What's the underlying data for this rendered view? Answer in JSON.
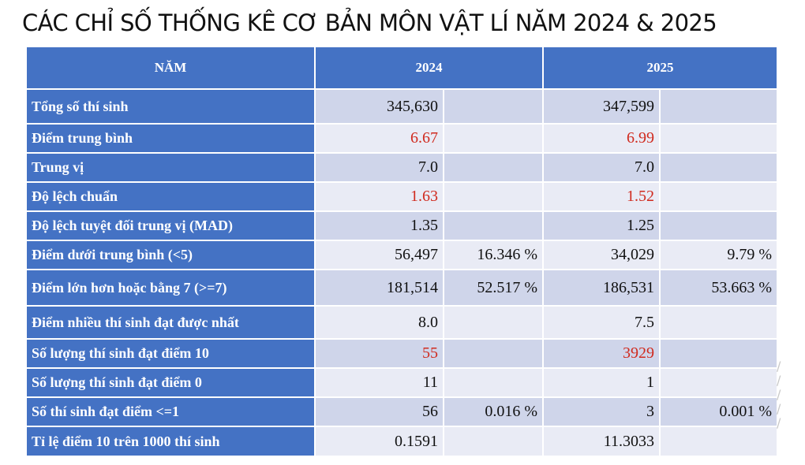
{
  "title": "CÁC CHỈ SỐ THỐNG KÊ CƠ BẢN MÔN VẬT LÍ NĂM 2024 & 2025",
  "table": {
    "headers": [
      "NĂM",
      "2024",
      "2025"
    ],
    "rows": [
      {
        "label": "Tổng số thí sinh",
        "v2024": "345,630",
        "p2024": "",
        "v2025": "347,599",
        "p2025": ""
      },
      {
        "label": "Điểm trung bình",
        "v2024": "6.67",
        "p2024": "",
        "v2025": "6.99",
        "p2025": ""
      },
      {
        "label": "Trung vị",
        "v2024": "7.0",
        "p2024": "",
        "v2025": "7.0",
        "p2025": ""
      },
      {
        "label": "Độ lệch chuẩn",
        "v2024": "1.63",
        "p2024": "",
        "v2025": "1.52",
        "p2025": ""
      },
      {
        "label": "Độ lệch tuyệt đối trung vị (MAD)",
        "v2024": "1.35",
        "p2024": "",
        "v2025": "1.25",
        "p2025": ""
      },
      {
        "label": "Điểm dưới trung bình (<5)",
        "v2024": "56,497",
        "p2024": "16.346 %",
        "v2025": "34,029",
        "p2025": "9.79 %"
      },
      {
        "label": "Điểm lớn hơn hoặc bằng 7 (>=7)",
        "v2024": "181,514",
        "p2024": "52.517 %",
        "v2025": "186,531",
        "p2025": "53.663 %"
      },
      {
        "label": "Điểm nhiều thí sinh đạt được nhất",
        "v2024": "8.0",
        "p2024": "",
        "v2025": "7.5",
        "p2025": ""
      },
      {
        "label": "Số lượng thí sinh đạt điểm 10",
        "v2024": "55",
        "p2024": "",
        "v2025": "3929",
        "p2025": ""
      },
      {
        "label": "Số lượng thí sinh đạt điểm 0",
        "v2024": "11",
        "p2024": "",
        "v2025": "1",
        "p2025": ""
      },
      {
        "label": "Số thí sinh đạt điểm <=1",
        "v2024": "56",
        "p2024": "0.016 %",
        "v2025": "3",
        "p2025": "0.001 %"
      },
      {
        "label": "Tỉ lệ điểm 10 trên 1000 thí sinh",
        "v2024": "0.1591",
        "p2024": "",
        "v2025": "11.3033",
        "p2025": ""
      }
    ]
  },
  "colors": {
    "header_bg": "#4472c4",
    "row_odd": "#cfd5ea",
    "row_even": "#e9ebf5",
    "highlight_text": "#d02a1e"
  }
}
